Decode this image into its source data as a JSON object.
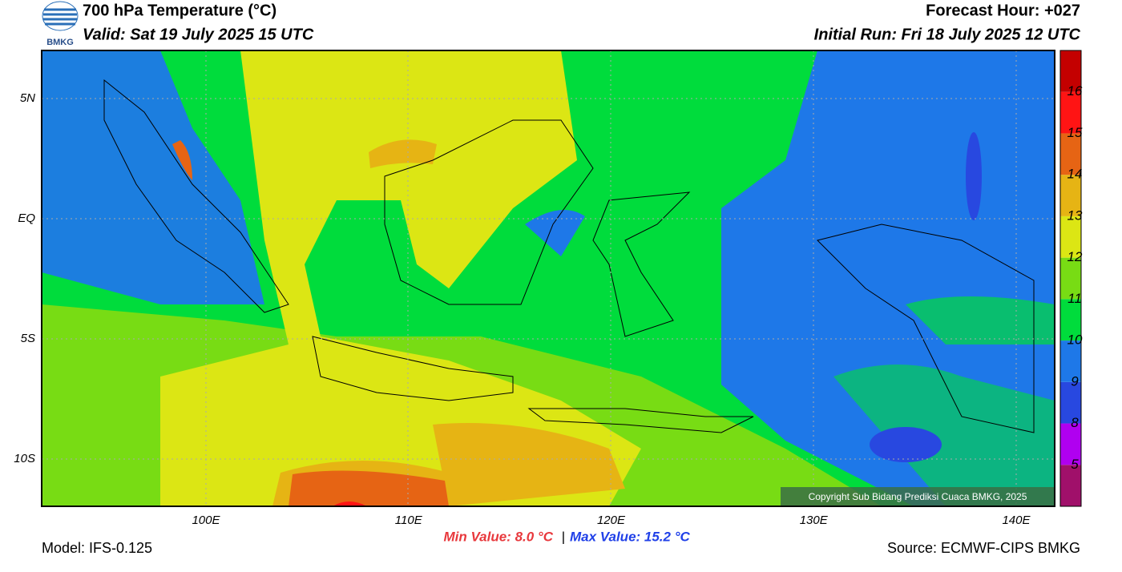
{
  "header": {
    "logo": "BMKG",
    "title": "700 hPa Temperature (°C)",
    "valid": "Valid: Sat 19 July 2025 15 UTC",
    "forecast_hour": "Forecast Hour: +027",
    "initial_run": "Initial Run: Fri 18 July 2025 12 UTC"
  },
  "map": {
    "lat_labels": [
      "5N",
      "EQ",
      "5S",
      "10S"
    ],
    "lon_labels": [
      "100E",
      "110E",
      "120E",
      "130E",
      "140E"
    ],
    "copyright": "Copyright Sub Bidang Prediksi Cuaca BMKG, 2025"
  },
  "colorbar": {
    "levels": [
      "5",
      "8",
      "9",
      "10",
      "11",
      "12",
      "13",
      "14",
      "15",
      "16"
    ],
    "colors": [
      "#a0106a",
      "#b000f0",
      "#2848e0",
      "#1e78e8",
      "#00dc3c",
      "#78dc14",
      "#dce614",
      "#e6b414",
      "#e66414",
      "#ff1414",
      "#c40000"
    ]
  },
  "footer": {
    "model": "Model: IFS-0.125",
    "min": "Min Value: 8.0 °C",
    "separator": "|",
    "max": "Max Value: 15.2 °C",
    "source": "Source: ECMWF-CIPS BMKG"
  }
}
